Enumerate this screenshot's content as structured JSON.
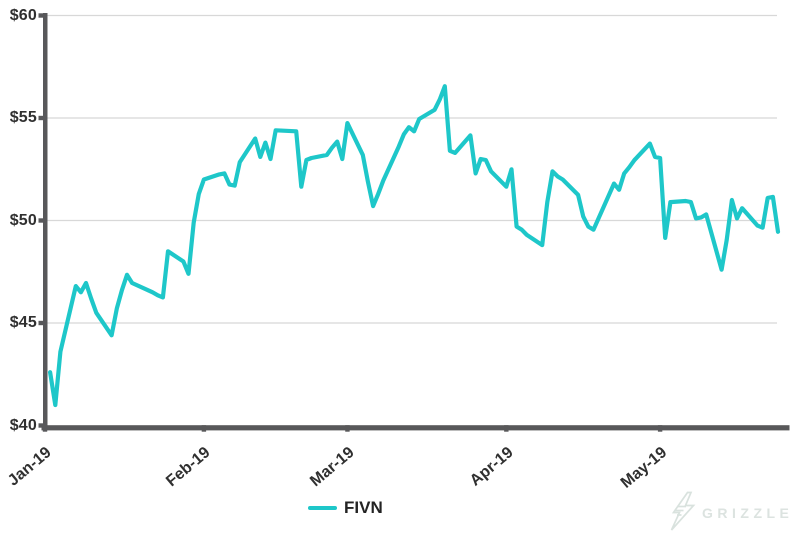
{
  "chart_data": {
    "type": "line",
    "title": "",
    "xlabel": "",
    "ylabel": "",
    "ylim": [
      40,
      60
    ],
    "x_range": [
      "2019-01-01",
      "2019-05-24"
    ],
    "grid": "horizontal-only",
    "y_ticks": [
      {
        "value": 40,
        "label": "$40"
      },
      {
        "value": 45,
        "label": "$45"
      },
      {
        "value": 50,
        "label": "$50"
      },
      {
        "value": 55,
        "label": "$55"
      },
      {
        "value": 60,
        "label": "$60"
      }
    ],
    "x_ticks": [
      {
        "date": "2019-01-01",
        "label": "Jan-19"
      },
      {
        "date": "2019-02-01",
        "label": "Feb-19"
      },
      {
        "date": "2019-03-01",
        "label": "Mar-19"
      },
      {
        "date": "2019-04-01",
        "label": "Apr-19"
      },
      {
        "date": "2019-05-01",
        "label": "May-19"
      }
    ],
    "legend": {
      "position": "bottom-center",
      "entries": [
        "FIVN"
      ]
    },
    "series": [
      {
        "name": "FIVN",
        "color": "#1ec7c9",
        "dates": [
          "2019-01-02",
          "2019-01-03",
          "2019-01-04",
          "2019-01-07",
          "2019-01-08",
          "2019-01-09",
          "2019-01-10",
          "2019-01-11",
          "2019-01-14",
          "2019-01-15",
          "2019-01-16",
          "2019-01-17",
          "2019-01-18",
          "2019-01-22",
          "2019-01-23",
          "2019-01-24",
          "2019-01-25",
          "2019-01-28",
          "2019-01-29",
          "2019-01-30",
          "2019-01-31",
          "2019-02-01",
          "2019-02-04",
          "2019-02-05",
          "2019-02-06",
          "2019-02-07",
          "2019-02-08",
          "2019-02-11",
          "2019-02-12",
          "2019-02-13",
          "2019-02-14",
          "2019-02-15",
          "2019-02-19",
          "2019-02-20",
          "2019-02-21",
          "2019-02-22",
          "2019-02-25",
          "2019-02-26",
          "2019-02-27",
          "2019-02-28",
          "2019-03-01",
          "2019-03-04",
          "2019-03-05",
          "2019-03-06",
          "2019-03-07",
          "2019-03-08",
          "2019-03-11",
          "2019-03-12",
          "2019-03-13",
          "2019-03-14",
          "2019-03-15",
          "2019-03-18",
          "2019-03-19",
          "2019-03-20",
          "2019-03-21",
          "2019-03-22",
          "2019-03-25",
          "2019-03-26",
          "2019-03-27",
          "2019-03-28",
          "2019-03-29",
          "2019-04-01",
          "2019-04-02",
          "2019-04-03",
          "2019-04-04",
          "2019-04-05",
          "2019-04-08",
          "2019-04-09",
          "2019-04-10",
          "2019-04-11",
          "2019-04-12",
          "2019-04-15",
          "2019-04-16",
          "2019-04-17",
          "2019-04-18",
          "2019-04-22",
          "2019-04-23",
          "2019-04-24",
          "2019-04-25",
          "2019-04-26",
          "2019-04-29",
          "2019-04-30",
          "2019-05-01",
          "2019-05-02",
          "2019-05-03",
          "2019-05-06",
          "2019-05-07",
          "2019-05-08",
          "2019-05-09",
          "2019-05-10",
          "2019-05-13",
          "2019-05-14",
          "2019-05-15",
          "2019-05-16",
          "2019-05-17",
          "2019-05-20",
          "2019-05-21",
          "2019-05-22",
          "2019-05-23",
          "2019-05-24"
        ],
        "prices": [
          42.6,
          41.0,
          43.6,
          46.8,
          46.5,
          46.95,
          46.2,
          45.5,
          44.4,
          45.7,
          46.6,
          47.35,
          46.95,
          46.5,
          46.35,
          46.25,
          48.5,
          48.0,
          47.4,
          49.9,
          51.3,
          52.0,
          52.25,
          52.3,
          51.75,
          51.7,
          52.85,
          54.0,
          53.1,
          53.8,
          53.0,
          54.4,
          54.35,
          51.65,
          52.95,
          53.05,
          53.2,
          53.55,
          53.85,
          53.0,
          54.75,
          53.2,
          51.9,
          50.7,
          51.3,
          51.95,
          53.6,
          54.2,
          54.55,
          54.35,
          54.95,
          55.4,
          55.9,
          56.55,
          53.4,
          53.3,
          54.15,
          52.3,
          53.0,
          52.95,
          52.4,
          51.65,
          52.5,
          49.7,
          49.55,
          49.3,
          48.8,
          50.9,
          52.4,
          52.15,
          52.0,
          51.25,
          50.2,
          49.7,
          49.55,
          51.8,
          51.5,
          52.3,
          52.6,
          52.95,
          53.75,
          53.1,
          53.05,
          49.15,
          50.9,
          50.95,
          50.9,
          50.1,
          50.15,
          50.3,
          47.6,
          49.05,
          51.0,
          50.1,
          50.6,
          49.75,
          49.65,
          51.1,
          51.15,
          49.45
        ]
      }
    ]
  },
  "branding": {
    "logo_text": "GRIZZLE",
    "logo_icon": "lightning-bolt-icon"
  },
  "colors": {
    "line": "#1ec7c9",
    "axis": "#58585a",
    "gridline": "#d8d8d8",
    "tick_label": "#303030",
    "legend_text": "#232323",
    "logo": "#dce3e0",
    "background": "#ffffff"
  }
}
